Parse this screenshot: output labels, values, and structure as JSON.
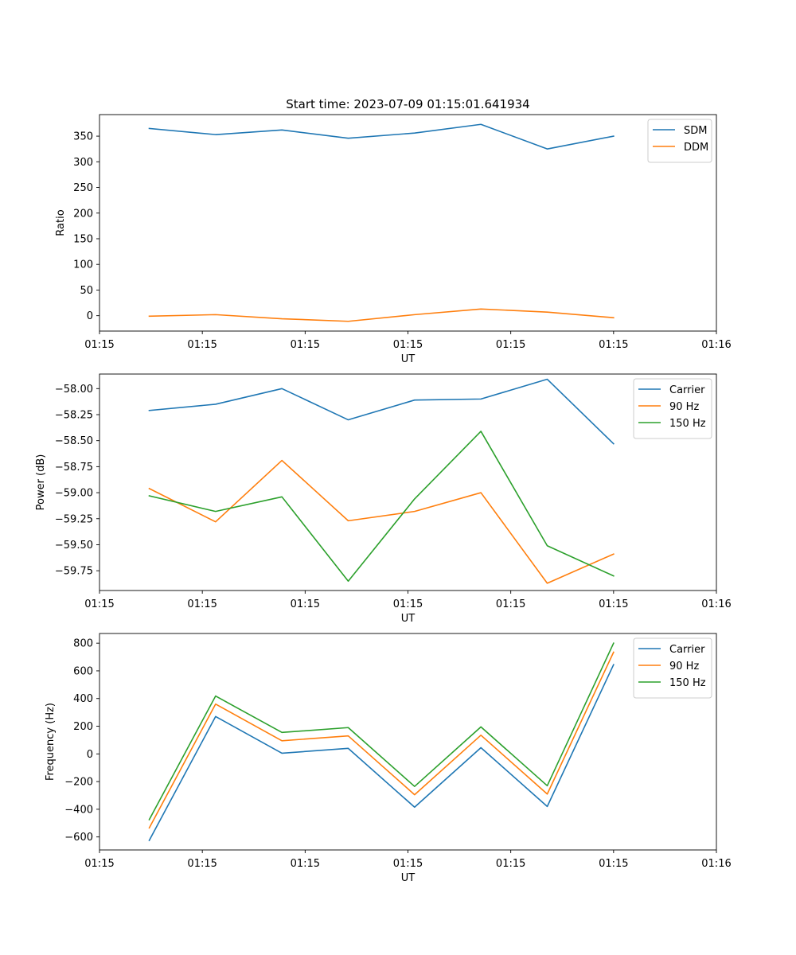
{
  "chart_data": [
    {
      "type": "line",
      "title": "Start time: 2023-07-09 01:15:01.641934",
      "xlabel": "UT",
      "ylabel": "Ratio",
      "x": [
        0,
        1,
        2,
        3,
        4,
        5,
        6,
        7
      ],
      "xlim": [
        -0.75,
        8.55
      ],
      "xticks": [
        -0.75,
        0.8,
        2.35,
        3.9,
        5.45,
        7.0,
        8.55
      ],
      "xtick_labels": [
        "01:15",
        "01:15",
        "01:15",
        "01:15",
        "01:15",
        "01:15",
        "01:16"
      ],
      "ylim": [
        -30,
        392
      ],
      "yticks": [
        0,
        50,
        100,
        150,
        200,
        250,
        300,
        350
      ],
      "ytick_labels": [
        "0",
        "50",
        "100",
        "150",
        "200",
        "250",
        "300",
        "350"
      ],
      "legend_position": "upper right",
      "series": [
        {
          "name": "SDM",
          "color": "#1f77b4",
          "values": [
            365,
            353,
            362,
            346,
            356,
            373,
            325,
            350
          ]
        },
        {
          "name": "DDM",
          "color": "#ff7f0e",
          "values": [
            -1,
            2,
            -6,
            -11,
            2,
            13,
            7,
            -4
          ]
        }
      ]
    },
    {
      "type": "line",
      "title": "",
      "xlabel": "UT",
      "ylabel": "Power (dB)",
      "x": [
        0,
        1,
        2,
        3,
        4,
        5,
        6,
        7
      ],
      "xlim": [
        -0.75,
        8.55
      ],
      "xticks": [
        -0.75,
        0.8,
        2.35,
        3.9,
        5.45,
        7.0,
        8.55
      ],
      "xtick_labels": [
        "01:15",
        "01:15",
        "01:15",
        "01:15",
        "01:15",
        "01:15",
        "01:16"
      ],
      "ylim": [
        -59.94,
        -57.86
      ],
      "yticks": [
        -59.75,
        -59.5,
        -59.25,
        -59.0,
        -58.75,
        -58.5,
        -58.25,
        -58.0
      ],
      "ytick_labels": [
        "−59.75",
        "−59.50",
        "−59.25",
        "−59.00",
        "−58.75",
        "−58.50",
        "−58.25",
        "−58.00"
      ],
      "legend_position": "upper right",
      "series": [
        {
          "name": "Carrier",
          "color": "#1f77b4",
          "values": [
            -58.21,
            -58.15,
            -58.0,
            -58.3,
            -58.11,
            -58.1,
            -57.91,
            -58.53
          ]
        },
        {
          "name": "90 Hz",
          "color": "#ff7f0e",
          "values": [
            -58.96,
            -59.28,
            -58.69,
            -59.27,
            -59.18,
            -59.0,
            -59.87,
            -59.59
          ]
        },
        {
          "name": "150 Hz",
          "color": "#2ca02c",
          "values": [
            -59.03,
            -59.18,
            -59.04,
            -59.85,
            -59.06,
            -58.41,
            -59.51,
            -59.8
          ]
        }
      ]
    },
    {
      "type": "line",
      "title": "",
      "xlabel": "UT",
      "ylabel": "Frequency (Hz)",
      "x": [
        0,
        1,
        2,
        3,
        4,
        5,
        6,
        7
      ],
      "xlim": [
        -0.75,
        8.55
      ],
      "xticks": [
        -0.75,
        0.8,
        2.35,
        3.9,
        5.45,
        7.0,
        8.55
      ],
      "xtick_labels": [
        "01:15",
        "01:15",
        "01:15",
        "01:15",
        "01:15",
        "01:15",
        "01:16"
      ],
      "ylim": [
        -694,
        870
      ],
      "yticks": [
        -600,
        -400,
        -200,
        0,
        200,
        400,
        600,
        800
      ],
      "ytick_labels": [
        "−600",
        "−400",
        "−200",
        "0",
        "200",
        "400",
        "600",
        "800"
      ],
      "legend_position": "upper right",
      "series": [
        {
          "name": "Carrier",
          "color": "#1f77b4",
          "values": [
            -625,
            270,
            5,
            40,
            -385,
            45,
            -380,
            645
          ]
        },
        {
          "name": "90 Hz",
          "color": "#ff7f0e",
          "values": [
            -535,
            360,
            95,
            130,
            -295,
            135,
            -290,
            735
          ]
        },
        {
          "name": "150 Hz",
          "color": "#2ca02c",
          "values": [
            -475,
            418,
            155,
            190,
            -235,
            195,
            -230,
            800
          ]
        }
      ]
    }
  ]
}
